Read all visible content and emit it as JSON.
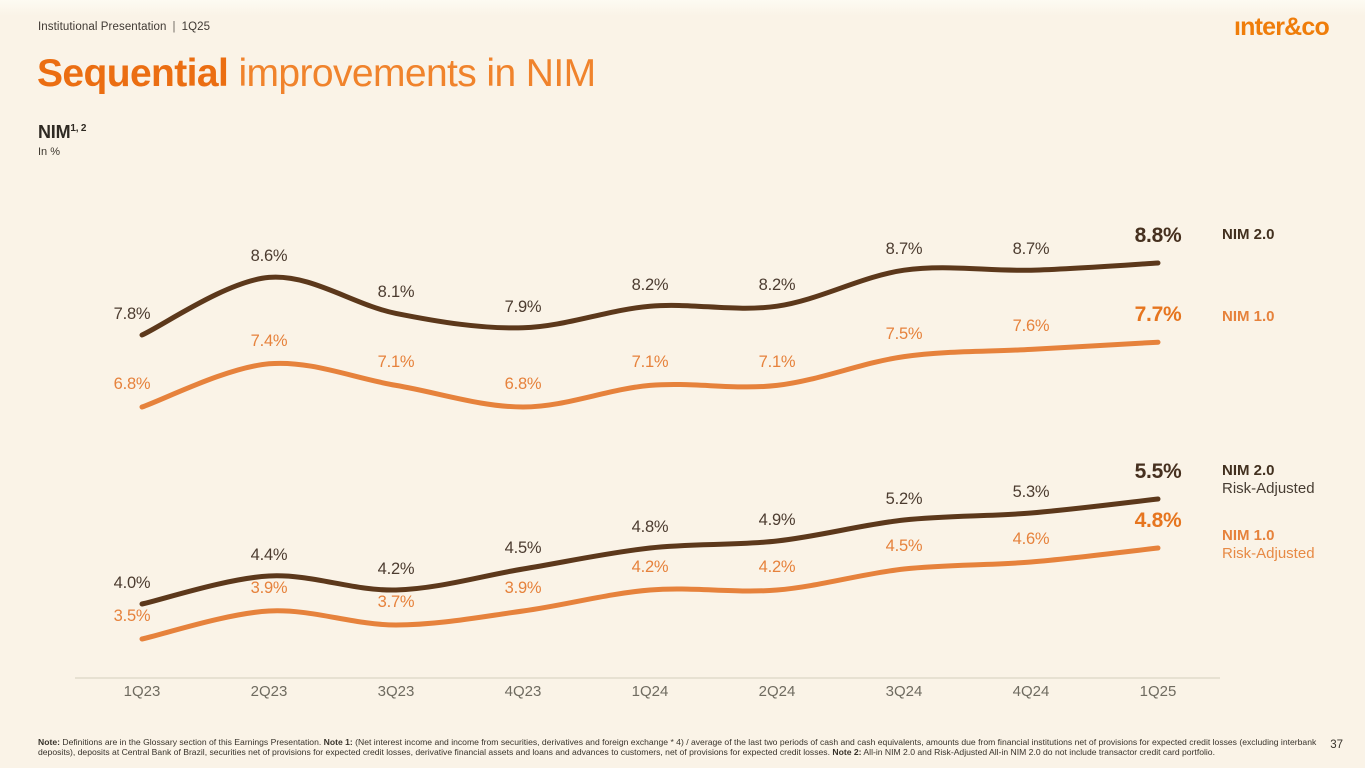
{
  "header": {
    "left": "Institutional Presentation",
    "divider": "|",
    "quarter": "1Q25",
    "logo": "ınter&co"
  },
  "title": {
    "highlight": "Sequential",
    "rest": "improvements in NIM"
  },
  "chart_heading": {
    "label": "NIM",
    "superscript": "1, 2",
    "unit": "In %"
  },
  "chart_data": {
    "type": "line",
    "title": "NIM, In %",
    "categories": [
      "1Q23",
      "2Q23",
      "3Q23",
      "4Q23",
      "1Q24",
      "2Q24",
      "3Q24",
      "4Q24",
      "1Q25"
    ],
    "unit": "%",
    "grid": false,
    "legend_position": "right",
    "series": [
      {
        "name": "NIM 2.0",
        "group": "top",
        "color": "#5C381B",
        "values": [
          7.8,
          8.6,
          8.1,
          7.9,
          8.2,
          8.2,
          8.7,
          8.7,
          8.8
        ]
      },
      {
        "name": "NIM 1.0",
        "group": "top",
        "color": "#E6823C",
        "values": [
          6.8,
          7.4,
          7.1,
          6.8,
          7.1,
          7.1,
          7.5,
          7.6,
          7.7
        ]
      },
      {
        "name": "NIM 2.0 Risk-Adjusted",
        "group": "bottom",
        "color": "#5C381B",
        "values": [
          4.0,
          4.4,
          4.2,
          4.5,
          4.8,
          4.9,
          5.2,
          5.3,
          5.5
        ]
      },
      {
        "name": "NIM 1.0 Risk-Adjusted",
        "group": "bottom",
        "color": "#E6823C",
        "values": [
          3.5,
          3.9,
          3.7,
          3.9,
          4.2,
          4.2,
          4.5,
          4.6,
          4.8
        ]
      }
    ],
    "legend": [
      {
        "line1": "NIM 2.0",
        "line2": ""
      },
      {
        "line1": "NIM 1.0",
        "line2": ""
      },
      {
        "line1": "NIM 2.0",
        "line2": "Risk-Adjusted"
      },
      {
        "line1": "NIM 1.0",
        "line2": "Risk-Adjusted"
      }
    ]
  },
  "footnote": {
    "segments": [
      {
        "text": "Note:",
        "bold": true
      },
      {
        "text": " Definitions are in the Glossary section of this Earnings Presentation. ",
        "bold": false
      },
      {
        "text": "Note 1:",
        "bold": true
      },
      {
        "text": " (Net interest income and income from securities, derivatives and foreign exchange * 4) / average of the last two periods of cash and cash equivalents, amounts due from financial institutions net of provisions for expected credit losses (excluding interbank deposits), deposits at Central Bank of Brazil, securities net of provisions for expected credit losses, derivative financial assets and loans and advances to customers, net of provisions for expected credit losses. ",
        "bold": false
      },
      {
        "text": "Note 2:",
        "bold": true
      },
      {
        "text": " All-in NIM 2.0 and Risk-Adjusted All-in NIM 2.0 do not include transactor credit card portfolio.",
        "bold": false
      }
    ]
  },
  "page_number": "37",
  "colors": {
    "background": "#FAF3E7",
    "brown_line": "#5C381B",
    "orange_line": "#E6823C",
    "brown_label": "#4C3C30",
    "brown_bold_label": "#46301F",
    "orange_bold_label": "#E6751F",
    "title_highlight": "#EB6E12",
    "title_rest": "#F0832C",
    "logo_orange": "#EF7D0A",
    "axis_line": "#DCD6C6",
    "axis_label": "#6F6B60"
  }
}
